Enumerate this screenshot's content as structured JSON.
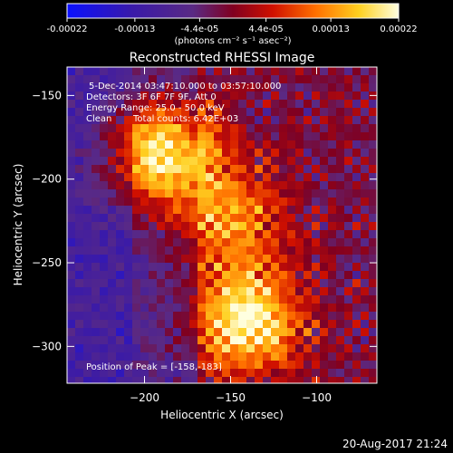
{
  "colorbar": {
    "tick_labels": [
      "-0.00022",
      "-0.00013",
      "-4.4e-05",
      "4.4e-05",
      "0.00013",
      "0.00022"
    ],
    "ticks": [
      -0.00022,
      -0.00013,
      -4.4e-05,
      4.4e-05,
      0.00013,
      0.00022
    ],
    "range": [
      -0.00022,
      0.00022
    ],
    "units": "(photons cm⁻² s⁻¹ asec⁻²)"
  },
  "chart_data": {
    "type": "heatmap",
    "title": "Reconstructed RHESSI Image",
    "xlabel": "Heliocentric X (arcsec)",
    "ylabel": "Heliocentric Y (arcsec)",
    "xlim": [
      -245,
      -65
    ],
    "ylim": [
      -322,
      -133
    ],
    "x_ticks": [
      -200,
      -150,
      -100
    ],
    "y_ticks": [
      -300,
      -250,
      -200,
      -150
    ],
    "x_tick_labels": [
      "−200",
      "−150",
      "−100"
    ],
    "y_tick_labels": [
      "−300",
      "−250",
      "−200",
      "−150"
    ],
    "colormap": "blue-purple-red-yellow-white",
    "sources": [
      {
        "x": -190,
        "y": -185,
        "peak": 1.0
      },
      {
        "x": -140,
        "y": -285,
        "peak": 0.85
      },
      {
        "x": -150,
        "y": -225,
        "peak": 0.55
      }
    ],
    "annotations": {
      "time_range": "5-Dec-2014 03:47:10.000 to 03:57:10.000",
      "detectors": "Detectors: 3F 6F 7F 9F, Att 0",
      "energy": "Energy Range: 25.0 - 50.0 keV",
      "algorithm": "Clean",
      "counts": "Total counts: 6.42E+03",
      "peak": "Position of Peak = [-158,-183]"
    }
  },
  "footer": {
    "timestamp": "20-Aug-2017 21:24"
  }
}
